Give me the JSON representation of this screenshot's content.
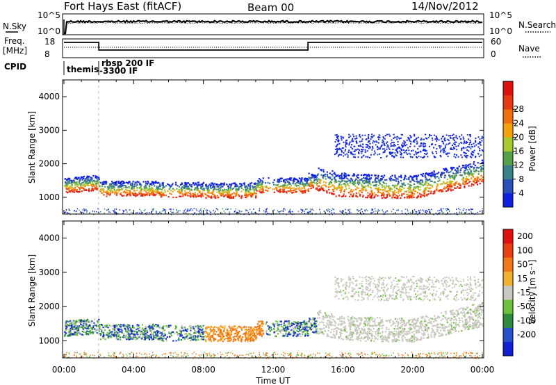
{
  "header": {
    "station": "Fort Hays East (fitACF)",
    "beam": "Beam 00",
    "date": "14/Nov/2012"
  },
  "top_panels": {
    "nsky_label": "N.Sky",
    "nsky_ticks": [
      "10^5",
      "10^0"
    ],
    "nsearch_label": "N.Search",
    "nsearch_ticks": [
      "10^5",
      "10^0"
    ],
    "freq_label": "Freq.",
    "freq_unit": "[MHz]",
    "freq_ticks": [
      "18",
      "8"
    ],
    "nave_label": "Nave",
    "nave_ticks": [
      "60",
      "0"
    ],
    "cpid_label": "CPID",
    "cpid_segments": [
      {
        "label": "themis",
        "start": "00:00",
        "end": "02:00"
      },
      {
        "label": "rbsp 200 IF",
        "start": "02:00",
        "end": "24:00"
      },
      {
        "label": "-3300 IF",
        "start": "02:00",
        "end": "24:00"
      }
    ],
    "freq_steps": [
      {
        "start_hour": 0,
        "end_hour": 2,
        "level": "high"
      },
      {
        "start_hour": 2,
        "end_hour": 14,
        "level": "low"
      },
      {
        "start_hour": 14,
        "end_hour": 24,
        "level": "high"
      }
    ]
  },
  "chart_data": [
    {
      "type": "heatmap",
      "title": "",
      "xlabel": "",
      "ylabel": "Slant Range [km]",
      "y_ticks": [
        "1000",
        "2000",
        "3000",
        "4000"
      ],
      "ylim": [
        500,
        4500
      ],
      "xlim_hours": [
        0,
        24
      ],
      "colorbar": {
        "label": "Power [dB]",
        "ticks": [
          "4",
          "8",
          "12",
          "16",
          "20",
          "24",
          "28"
        ],
        "colors": [
          "#1020e0",
          "#2a4fb8",
          "#3a7f8a",
          "#56a04c",
          "#a8c830",
          "#f4a20c",
          "#f07010",
          "#e83a10",
          "#e01010"
        ]
      }
    },
    {
      "type": "heatmap",
      "title": "",
      "xlabel": "Time UT",
      "ylabel": "Slant Range [km]",
      "y_ticks": [
        "1000",
        "2000",
        "3000",
        "4000"
      ],
      "ylim": [
        500,
        4500
      ],
      "xlim_hours": [
        0,
        24
      ],
      "x_ticks": [
        "00:00",
        "04:00",
        "08:00",
        "12:00",
        "16:00",
        "20:00",
        "00:00"
      ],
      "colorbar": {
        "label": "Velocity [m s⁻¹]",
        "ticks": [
          "200",
          "100",
          "50",
          "15",
          "-15",
          "-50",
          "-100",
          "-200"
        ],
        "colors": [
          "#1020d0",
          "#2850c8",
          "#2e8a3c",
          "#70c040",
          "#c8c8c0",
          "#f0b030",
          "#f07818",
          "#e84010",
          "#e01010"
        ]
      }
    }
  ]
}
